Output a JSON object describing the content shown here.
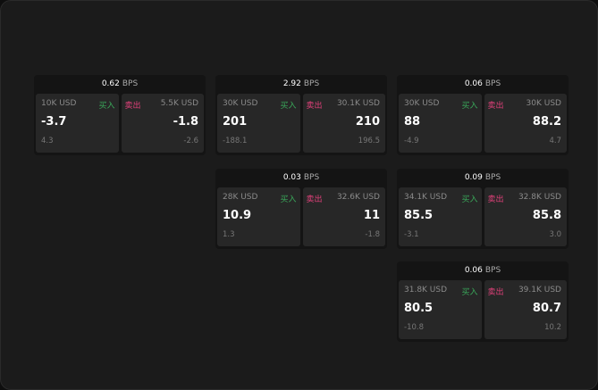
{
  "labels": {
    "buy": "买入",
    "sell": "卖出",
    "unit": "BPS"
  },
  "colors": {
    "buy": "#3aa85a",
    "sell": "#e0407a"
  },
  "cards": [
    {
      "spread": "0.62",
      "buy": {
        "amount": "10K USD",
        "price": "-3.7",
        "change": "4.3"
      },
      "sell": {
        "amount": "5.5K USD",
        "price": "-1.8",
        "change": "-2.6"
      }
    },
    {
      "spread": "2.92",
      "buy": {
        "amount": "30K USD",
        "price": "201",
        "change": "-188.1"
      },
      "sell": {
        "amount": "30.1K USD",
        "price": "210",
        "change": "196.5"
      }
    },
    {
      "spread": "0.06",
      "buy": {
        "amount": "30K USD",
        "price": "88",
        "change": "-4.9"
      },
      "sell": {
        "amount": "30K USD",
        "price": "88.2",
        "change": "4.7"
      }
    },
    {
      "spread": "0.03",
      "buy": {
        "amount": "28K USD",
        "price": "10.9",
        "change": "1.3"
      },
      "sell": {
        "amount": "32.6K USD",
        "price": "11",
        "change": "-1.8"
      }
    },
    {
      "spread": "0.09",
      "buy": {
        "amount": "34.1K USD",
        "price": "85.5",
        "change": "-3.1"
      },
      "sell": {
        "amount": "32.8K USD",
        "price": "85.8",
        "change": "3.0"
      }
    },
    {
      "spread": "0.06",
      "buy": {
        "amount": "31.8K USD",
        "price": "80.5",
        "change": "-10.8"
      },
      "sell": {
        "amount": "39.1K USD",
        "price": "80.7",
        "change": "10.2"
      }
    }
  ]
}
